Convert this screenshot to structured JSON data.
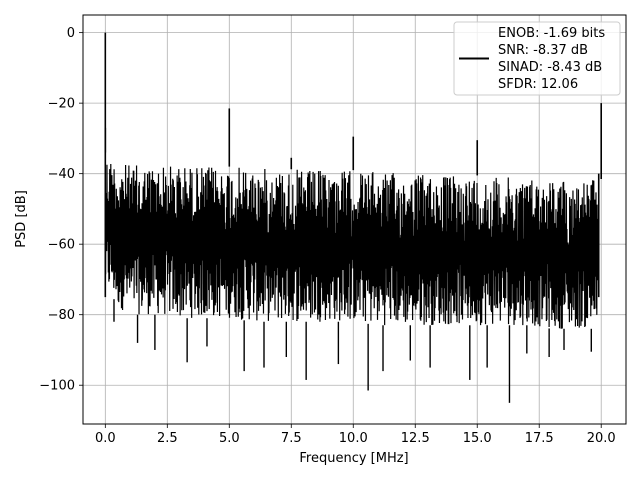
{
  "chart_data": {
    "type": "line",
    "title": "",
    "xlabel": "Frequency [MHz]",
    "ylabel": "PSD [dB]",
    "xlim": [
      -0.9,
      21.0
    ],
    "ylim": [
      -111,
      5
    ],
    "xticks": [
      0,
      2.5,
      5,
      7.5,
      10,
      12.5,
      15,
      17.5,
      20
    ],
    "xtick_labels": [
      "0.0",
      "2.5",
      "5.0",
      "7.5",
      "10.0",
      "12.5",
      "15.0",
      "17.5",
      "20.0"
    ],
    "yticks": [
      0,
      -20,
      -40,
      -60,
      -80,
      -100
    ],
    "ytick_labels": [
      "0",
      "−20",
      "−40",
      "−60",
      "−80",
      "−100"
    ],
    "grid": true,
    "line_color": "#000000",
    "legend": {
      "placement": "upper-right",
      "lines": [
        "ENOB: -1.69 bits",
        "SNR: -8.37 dB",
        "SINAD: -8.43 dB",
        "SFDR: 12.06"
      ]
    },
    "series": [
      {
        "noise_envelope": {
          "x": [
            0.0,
            0.25,
            0.5,
            1.0,
            2.0,
            3.0,
            4.0,
            5.0,
            6.0,
            7.0,
            8.0,
            9.0,
            10.0,
            11.0,
            12.0,
            13.0,
            14.0,
            15.0,
            16.0,
            17.0,
            18.0,
            19.0,
            19.9
          ],
          "top": [
            -34,
            -35.5,
            -36.5,
            -37.5,
            -37.5,
            -37.5,
            -38,
            -38,
            -38.5,
            -38.5,
            -39,
            -39,
            -39,
            -39.5,
            -40,
            -40,
            -40.5,
            -40.5,
            -41,
            -41,
            -41.5,
            -42,
            -41.5
          ],
          "bottom": [
            -74,
            -74,
            -78,
            -80,
            -80,
            -81,
            -81,
            -81,
            -82,
            -82,
            -82,
            -82,
            -82,
            -83,
            -83,
            -83,
            -83,
            -83,
            -83,
            -83,
            -84,
            -84,
            -84
          ]
        },
        "spikes": [
          {
            "x": 0.0,
            "y": 0
          },
          {
            "x": 5.0,
            "y": -21.5
          },
          {
            "x": 7.5,
            "y": -35.5
          },
          {
            "x": 10.0,
            "y": -29.5
          },
          {
            "x": 15.0,
            "y": -30.5
          },
          {
            "x": 20.0,
            "y": -20
          }
        ],
        "dips": [
          {
            "x": 0.35,
            "y": -82
          },
          {
            "x": 1.3,
            "y": -88
          },
          {
            "x": 2.0,
            "y": -90
          },
          {
            "x": 3.3,
            "y": -93.5
          },
          {
            "x": 4.1,
            "y": -89
          },
          {
            "x": 5.6,
            "y": -96
          },
          {
            "x": 6.4,
            "y": -95
          },
          {
            "x": 7.3,
            "y": -92
          },
          {
            "x": 8.1,
            "y": -98.5
          },
          {
            "x": 9.4,
            "y": -94
          },
          {
            "x": 10.6,
            "y": -101.5
          },
          {
            "x": 11.2,
            "y": -96
          },
          {
            "x": 12.3,
            "y": -93
          },
          {
            "x": 13.1,
            "y": -95
          },
          {
            "x": 14.7,
            "y": -98.5
          },
          {
            "x": 15.4,
            "y": -95
          },
          {
            "x": 16.3,
            "y": -105
          },
          {
            "x": 17.0,
            "y": -91
          },
          {
            "x": 17.9,
            "y": -92
          },
          {
            "x": 18.5,
            "y": -90
          },
          {
            "x": 19.6,
            "y": -90.5
          }
        ]
      }
    ]
  }
}
